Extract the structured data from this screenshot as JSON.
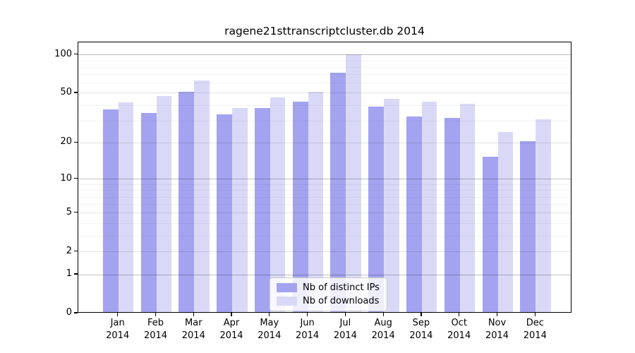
{
  "title": "ragene21sttranscriptcluster.db 2014",
  "chart_data": {
    "type": "bar",
    "title": "ragene21sttranscriptcluster.db 2014",
    "scale": "log1p",
    "categories": [
      "Jan",
      "Feb",
      "Mar",
      "Apr",
      "May",
      "Jun",
      "Jul",
      "Aug",
      "Sep",
      "Oct",
      "Nov",
      "Dec"
    ],
    "year": "2014",
    "series": [
      {
        "name": "Nb of distinct IPs",
        "color": "#a3a3f0",
        "values": [
          36,
          34,
          50,
          33,
          37,
          42,
          71,
          38,
          32,
          31,
          15,
          20
        ]
      },
      {
        "name": "Nb of downloads",
        "color": "#d9d9f7",
        "values": [
          41,
          46,
          61,
          37,
          45,
          50,
          98,
          44,
          42,
          40,
          24,
          30
        ]
      }
    ],
    "y_axis": {
      "ticks": [
        0,
        1,
        2,
        5,
        10,
        20,
        50,
        100
      ],
      "major_gridlines": [
        1,
        10,
        100
      ],
      "mid_gridlines": [
        2,
        5,
        20,
        50
      ],
      "minor_gridlines": [
        3,
        4,
        6,
        7,
        8,
        9,
        30,
        40,
        60,
        70,
        80,
        90
      ]
    },
    "xlabel": "",
    "ylabel": "",
    "ylim": [
      0,
      125
    ],
    "grid": true,
    "legend": {
      "position": "lower center inside",
      "entries": [
        "Nb of distinct IPs",
        "Nb of downloads"
      ]
    }
  },
  "colors": {
    "background": "#ffffff",
    "axis": "#000000",
    "text": "#000000",
    "bar_distinct_ips": "#a3a3f0",
    "bar_downloads": "#d9d9f7",
    "major_grid": "rgba(0,0,0,0.25)",
    "mid_grid": "rgba(0,0,0,0.11)",
    "minor_grid": "rgba(0,0,0,0.05)",
    "legend_border": "#cccccc",
    "legend_background": "rgba(255,255,255,0.82)"
  }
}
